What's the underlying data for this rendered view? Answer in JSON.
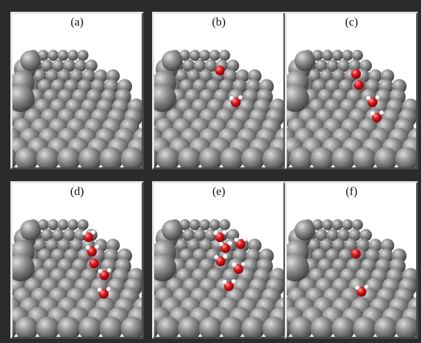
{
  "figure": {
    "panels": [
      {
        "label": "(a)",
        "molecules": []
      },
      {
        "label": "(b)",
        "molecules": [
          [
            95,
            82,
            0
          ],
          [
            118,
            128,
            1
          ]
        ]
      },
      {
        "label": "(c)",
        "molecules": [
          [
            100,
            87,
            0
          ],
          [
            104,
            103,
            0
          ],
          [
            124,
            128,
            1
          ],
          [
            130,
            150,
            1
          ]
        ]
      },
      {
        "label": "(d)",
        "molecules": [
          [
            110,
            78,
            1
          ],
          [
            115,
            99,
            1
          ],
          [
            118,
            116,
            0
          ],
          [
            133,
            133,
            1
          ],
          [
            132,
            160,
            1
          ]
        ]
      },
      {
        "label": "(e)",
        "molecules": [
          [
            95,
            78,
            1
          ],
          [
            103,
            94,
            1
          ],
          [
            125,
            88,
            1
          ],
          [
            96,
            113,
            1
          ],
          [
            122,
            124,
            1
          ],
          [
            108,
            149,
            1
          ]
        ]
      },
      {
        "label": "(f)",
        "molecules": [
          [
            100,
            102,
            0
          ],
          [
            108,
            157,
            1
          ]
        ]
      }
    ],
    "colors": {
      "background": "#2b2b2b",
      "panel_bg": "#ffffff",
      "atom_metal": "#8c8c8c",
      "atom_oxygen": "#d8171a",
      "atom_hydrogen": "#f2f2f2"
    }
  }
}
